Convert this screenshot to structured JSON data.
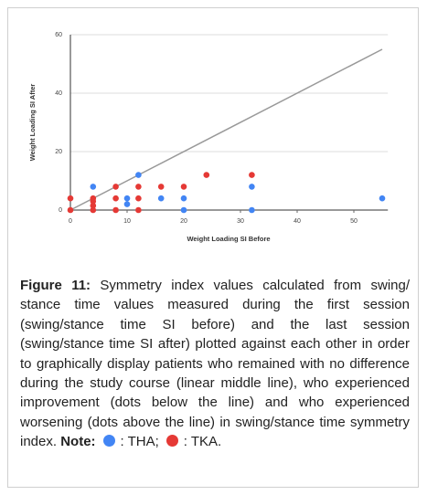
{
  "chart_data": {
    "type": "scatter",
    "x_label": "Weight Loading SI Before",
    "y_label": "Weight Loading SI After",
    "xlim": [
      0,
      56
    ],
    "ylim": [
      0,
      60
    ],
    "xticks": [
      0,
      10,
      20,
      30,
      40,
      50
    ],
    "yticks": [
      0,
      20,
      40,
      60
    ],
    "grid": true,
    "reference_line": {
      "x": [
        0,
        55
      ],
      "y": [
        0,
        55
      ],
      "color": "#999999"
    },
    "series": [
      {
        "name": "TKA",
        "color": "#e53935",
        "x": [
          0,
          0,
          4,
          4,
          4,
          4,
          8,
          8,
          8,
          12,
          12,
          12,
          16,
          20,
          24,
          32
        ],
        "values": [
          4,
          0,
          4,
          3,
          1.5,
          0,
          8,
          4,
          0,
          8,
          4,
          0,
          8,
          8,
          12,
          12
        ]
      },
      {
        "name": "THA",
        "color": "#4285f4",
        "x": [
          4,
          12,
          10,
          10,
          16,
          20,
          20,
          32,
          32,
          55
        ],
        "values": [
          8,
          12,
          4,
          2,
          4,
          4,
          0,
          8,
          0,
          4
        ]
      }
    ]
  },
  "caption": {
    "label": "Figure 11:",
    "text": "Symmetry index values calculated from swing/ stance time values measured during the first session (swing/stance time SI before) and the last session (swing/stance time SI after) plotted against each other in order to graphically display patients who remained with no difference during the study course (linear middle line), who experienced improvement (dots below the line) and who experienced worsening (dots above the line) in swing/stance time symmetry index.",
    "note": "Note:"
  }
}
